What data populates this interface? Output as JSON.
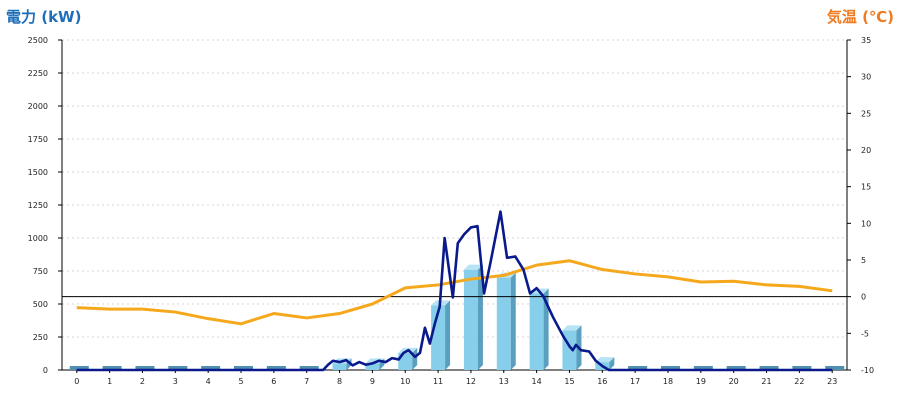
{
  "chart_data": {
    "type": "bar+line",
    "left_axis_title": "電力 (kW)",
    "right_axis_title": "気温 (℃)",
    "x_ticks": [
      "0",
      "1",
      "2",
      "3",
      "4",
      "5",
      "6",
      "7",
      "8",
      "9",
      "10",
      "11",
      "12",
      "13",
      "14",
      "15",
      "16",
      "17",
      "18",
      "19",
      "20",
      "21",
      "22",
      "23"
    ],
    "y_left_ticks": [
      "0",
      "250",
      "500",
      "750",
      "1000",
      "1250",
      "1500",
      "1750",
      "2000",
      "2250",
      "2500"
    ],
    "y_right_ticks": [
      "-10",
      "-5",
      "0",
      "5",
      "10",
      "15",
      "20",
      "25",
      "30",
      "35"
    ],
    "y_left_lim": [
      0,
      2500
    ],
    "y_right_lim": [
      -10,
      35
    ],
    "reference_line_right_value": 0,
    "grid": "horizontal dashed",
    "colors": {
      "bar_front": "#87ceeb",
      "bar_side": "#5a9fbf",
      "bar_baseline": "#4f8fb0",
      "power_line": "#0a1a8c",
      "temp_line": "#f5a81c",
      "left_title": "#1f6fb8",
      "right_title": "#f07a20"
    },
    "series": [
      {
        "kind": "bar",
        "axis": "left",
        "x": [
          0,
          1,
          2,
          3,
          4,
          5,
          6,
          7,
          8,
          9,
          10,
          11,
          12,
          13,
          14,
          15,
          16,
          17,
          18,
          19,
          20,
          21,
          22,
          23
        ],
        "values": [
          0,
          0,
          0,
          0,
          0,
          0,
          0,
          0,
          50,
          50,
          130,
          490,
          760,
          700,
          580,
          300,
          60,
          0,
          0,
          0,
          0,
          0,
          0,
          0
        ]
      },
      {
        "kind": "line",
        "axis": "left",
        "points": [
          [
            0,
            0
          ],
          [
            1,
            0
          ],
          [
            2,
            0
          ],
          [
            3,
            0
          ],
          [
            4,
            0
          ],
          [
            5,
            0
          ],
          [
            6,
            0
          ],
          [
            7,
            0
          ],
          [
            7.5,
            0
          ],
          [
            7.65,
            40
          ],
          [
            7.8,
            70
          ],
          [
            8.0,
            60
          ],
          [
            8.2,
            75
          ],
          [
            8.4,
            35
          ],
          [
            8.6,
            60
          ],
          [
            8.8,
            40
          ],
          [
            9.0,
            50
          ],
          [
            9.2,
            70
          ],
          [
            9.4,
            60
          ],
          [
            9.6,
            90
          ],
          [
            9.8,
            80
          ],
          [
            9.95,
            130
          ],
          [
            10.1,
            150
          ],
          [
            10.3,
            100
          ],
          [
            10.45,
            130
          ],
          [
            10.6,
            320
          ],
          [
            10.75,
            200
          ],
          [
            10.9,
            350
          ],
          [
            11.05,
            480
          ],
          [
            11.2,
            1000
          ],
          [
            11.45,
            550
          ],
          [
            11.6,
            960
          ],
          [
            11.8,
            1030
          ],
          [
            12.0,
            1080
          ],
          [
            12.2,
            1090
          ],
          [
            12.4,
            580
          ],
          [
            12.6,
            820
          ],
          [
            12.9,
            1200
          ],
          [
            13.1,
            850
          ],
          [
            13.35,
            860
          ],
          [
            13.6,
            760
          ],
          [
            13.8,
            580
          ],
          [
            14.0,
            620
          ],
          [
            14.2,
            560
          ],
          [
            14.5,
            400
          ],
          [
            14.8,
            260
          ],
          [
            14.95,
            200
          ],
          [
            15.0,
            180
          ],
          [
            15.1,
            150
          ],
          [
            15.2,
            190
          ],
          [
            15.35,
            150
          ],
          [
            15.6,
            140
          ],
          [
            15.8,
            70
          ],
          [
            16.0,
            30
          ],
          [
            16.2,
            0
          ],
          [
            17,
            0
          ],
          [
            18,
            0
          ],
          [
            19,
            0
          ],
          [
            20,
            0
          ],
          [
            21,
            0
          ],
          [
            22,
            0
          ],
          [
            23,
            0
          ]
        ]
      },
      {
        "kind": "line",
        "axis": "right",
        "points": [
          [
            0,
            -1.5
          ],
          [
            1,
            -1.7
          ],
          [
            2,
            -1.7
          ],
          [
            3,
            -2.1
          ],
          [
            4,
            -3.0
          ],
          [
            5,
            -3.7
          ],
          [
            6,
            -2.3
          ],
          [
            7,
            -2.9
          ],
          [
            8,
            -2.3
          ],
          [
            9,
            -1.0
          ],
          [
            10,
            1.2
          ],
          [
            11,
            1.6
          ],
          [
            12,
            2.4
          ],
          [
            13,
            2.9
          ],
          [
            14,
            4.3
          ],
          [
            15,
            4.9
          ],
          [
            16,
            3.7
          ],
          [
            17,
            3.1
          ],
          [
            18,
            2.7
          ],
          [
            19,
            2.0
          ],
          [
            20,
            2.1
          ],
          [
            21,
            1.6
          ],
          [
            22,
            1.4
          ],
          [
            23,
            0.8
          ]
        ]
      }
    ]
  }
}
